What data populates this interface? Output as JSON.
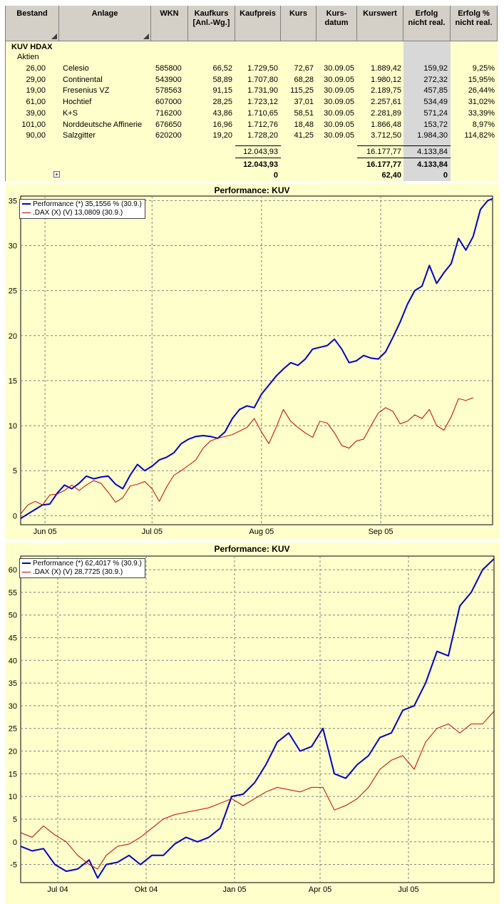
{
  "table": {
    "headers": [
      "Bestand",
      "Anlage",
      "WKN",
      "Kaufkurs [Anl.-Wg.]",
      "Kaufpreis",
      "Kurs",
      "Kurs-datum",
      "Kurswert",
      "Erfolg nicht real.",
      "Erfolg % nicht real."
    ],
    "header_lines": [
      [
        "Bestand"
      ],
      [
        "Anlage"
      ],
      [
        "WKN"
      ],
      [
        "Kaufkurs",
        "[Anl.-Wg.]"
      ],
      [
        "Kaufpreis"
      ],
      [
        "Kurs"
      ],
      [
        "Kurs-",
        "datum"
      ],
      [
        "Kurswert"
      ],
      [
        "Erfolg",
        "nicht real."
      ],
      [
        "Erfolg %",
        "nicht real."
      ]
    ],
    "group": "KUV HDAX",
    "subgroup": "Aktien",
    "rows": [
      {
        "bestand": "26,00",
        "anlage": "Celesio",
        "wkn": "585800",
        "kaufkurs": "66,52",
        "kaufpreis": "1.729,50",
        "kurs": "72,67",
        "datum": "30.09.05",
        "kurswert": "1.889,42",
        "erfolg": "159,92",
        "erfolg_pct": "9,25%"
      },
      {
        "bestand": "29,00",
        "anlage": "Continental",
        "wkn": "543900",
        "kaufkurs": "58,89",
        "kaufpreis": "1.707,80",
        "kurs": "68,28",
        "datum": "30.09.05",
        "kurswert": "1.980,12",
        "erfolg": "272,32",
        "erfolg_pct": "15,95%"
      },
      {
        "bestand": "19,00",
        "anlage": "Fresenius VZ",
        "wkn": "578563",
        "kaufkurs": "91,15",
        "kaufpreis": "1.731,90",
        "kurs": "115,25",
        "datum": "30.09.05",
        "kurswert": "2.189,75",
        "erfolg": "457,85",
        "erfolg_pct": "26,44%"
      },
      {
        "bestand": "61,00",
        "anlage": "Hochtief",
        "wkn": "607000",
        "kaufkurs": "28,25",
        "kaufpreis": "1.723,12",
        "kurs": "37,01",
        "datum": "30.09.05",
        "kurswert": "2.257,61",
        "erfolg": "534,49",
        "erfolg_pct": "31,02%"
      },
      {
        "bestand": "39,00",
        "anlage": "K+S",
        "wkn": "716200",
        "kaufkurs": "43,86",
        "kaufpreis": "1.710,65",
        "kurs": "58,51",
        "datum": "30.09.05",
        "kurswert": "2.281,89",
        "erfolg": "571,24",
        "erfolg_pct": "33,39%"
      },
      {
        "bestand": "101,00",
        "anlage": "Norddeutsche Affinerie",
        "wkn": "676650",
        "kaufkurs": "16,96",
        "kaufpreis": "1.712,76",
        "kurs": "18,48",
        "datum": "30.09.05",
        "kurswert": "1.866,48",
        "erfolg": "153,72",
        "erfolg_pct": "8,97%"
      },
      {
        "bestand": "90,00",
        "anlage": "Salzgitter",
        "wkn": "620200",
        "kaufkurs": "19,20",
        "kaufpreis": "1.728,20",
        "kurs": "41,25",
        "datum": "30.09.05",
        "kurswert": "3.712,50",
        "erfolg": "1.984,30",
        "erfolg_pct": "114,82%"
      }
    ],
    "subtotal": {
      "kaufpreis": "12.043,93",
      "kurswert": "16.177,77",
      "erfolg": "4.133,84"
    },
    "total": {
      "kaufpreis": "12.043,93",
      "kurswert": "16.177,77",
      "erfolg": "4.133,84"
    },
    "total2": {
      "kaufpreis": "0",
      "kurswert": "62,40",
      "erfolg": "0"
    },
    "expand_symbol": "+"
  },
  "chart_data": [
    {
      "type": "line",
      "title": "Performance: KUV",
      "ylim": [
        -1,
        35.5
      ],
      "yticks": [
        0,
        5,
        10,
        15,
        20,
        25,
        30,
        35
      ],
      "xlim": [
        0,
        19.4
      ],
      "xticks": [
        {
          "pos": 1.0,
          "label": "Jun 05"
        },
        {
          "pos": 5.4,
          "label": "Jul 05"
        },
        {
          "pos": 9.9,
          "label": "Aug 05"
        },
        {
          "pos": 14.8,
          "label": "Sep 05"
        }
      ],
      "grid": true,
      "legend_position": "top-left",
      "series": [
        {
          "name": "Performance (*) 35,1556 % (30.9.)",
          "color": "#0000cc",
          "points": [
            [
              0,
              -0.3
            ],
            [
              0.3,
              0.2
            ],
            [
              0.6,
              0.7
            ],
            [
              0.9,
              1.2
            ],
            [
              1.2,
              1.3
            ],
            [
              1.5,
              2.5
            ],
            [
              1.8,
              3.4
            ],
            [
              2.1,
              3.0
            ],
            [
              2.4,
              3.6
            ],
            [
              2.7,
              4.4
            ],
            [
              3.0,
              4.1
            ],
            [
              3.3,
              4.3
            ],
            [
              3.6,
              4.4
            ],
            [
              3.9,
              3.5
            ],
            [
              4.2,
              3.0
            ],
            [
              4.5,
              4.5
            ],
            [
              4.8,
              5.7
            ],
            [
              5.1,
              5.0
            ],
            [
              5.4,
              5.5
            ],
            [
              5.7,
              6.2
            ],
            [
              6.0,
              6.5
            ],
            [
              6.3,
              7.0
            ],
            [
              6.6,
              8.0
            ],
            [
              6.9,
              8.5
            ],
            [
              7.2,
              8.8
            ],
            [
              7.5,
              8.9
            ],
            [
              7.8,
              8.8
            ],
            [
              8.1,
              8.6
            ],
            [
              8.4,
              9.3
            ],
            [
              8.7,
              10.8
            ],
            [
              9.0,
              11.8
            ],
            [
              9.3,
              12.2
            ],
            [
              9.6,
              12.0
            ],
            [
              9.9,
              13.5
            ],
            [
              10.2,
              14.5
            ],
            [
              10.5,
              15.5
            ],
            [
              10.8,
              16.3
            ],
            [
              11.1,
              17.0
            ],
            [
              11.4,
              16.7
            ],
            [
              11.7,
              17.4
            ],
            [
              12.0,
              18.5
            ],
            [
              12.3,
              18.7
            ],
            [
              12.6,
              18.9
            ],
            [
              12.9,
              19.6
            ],
            [
              13.2,
              18.5
            ],
            [
              13.5,
              17.0
            ],
            [
              13.8,
              17.2
            ],
            [
              14.1,
              17.8
            ],
            [
              14.4,
              17.5
            ],
            [
              14.7,
              17.4
            ],
            [
              15.0,
              18.2
            ],
            [
              15.3,
              19.8
            ],
            [
              15.6,
              21.5
            ],
            [
              15.9,
              23.5
            ],
            [
              16.2,
              25.0
            ],
            [
              16.5,
              25.5
            ],
            [
              16.8,
              27.8
            ],
            [
              17.1,
              25.8
            ],
            [
              17.4,
              27.0
            ],
            [
              17.7,
              28.0
            ],
            [
              18.0,
              30.8
            ],
            [
              18.3,
              29.5
            ],
            [
              18.6,
              31.0
            ],
            [
              18.9,
              34.0
            ],
            [
              19.2,
              35.0
            ],
            [
              19.4,
              35.2
            ]
          ]
        },
        {
          "name": ".DAX (X) (V) 13,0809 (30.9.)",
          "color": "#cc0000",
          "points": [
            [
              0,
              0.2
            ],
            [
              0.3,
              1.2
            ],
            [
              0.6,
              1.6
            ],
            [
              0.9,
              1.2
            ],
            [
              1.2,
              2.3
            ],
            [
              1.5,
              2.4
            ],
            [
              1.8,
              2.8
            ],
            [
              2.1,
              3.4
            ],
            [
              2.4,
              2.8
            ],
            [
              2.7,
              3.4
            ],
            [
              3.0,
              3.9
            ],
            [
              3.3,
              3.6
            ],
            [
              3.6,
              2.6
            ],
            [
              3.9,
              1.5
            ],
            [
              4.2,
              2.0
            ],
            [
              4.5,
              3.3
            ],
            [
              4.8,
              3.5
            ],
            [
              5.1,
              3.8
            ],
            [
              5.4,
              3.0
            ],
            [
              5.7,
              1.6
            ],
            [
              6.0,
              3.2
            ],
            [
              6.3,
              4.5
            ],
            [
              6.6,
              5.0
            ],
            [
              6.9,
              5.6
            ],
            [
              7.2,
              6.2
            ],
            [
              7.5,
              7.5
            ],
            [
              7.8,
              8.3
            ],
            [
              8.1,
              8.6
            ],
            [
              8.4,
              8.8
            ],
            [
              8.7,
              9.0
            ],
            [
              9.0,
              9.4
            ],
            [
              9.3,
              9.8
            ],
            [
              9.6,
              10.8
            ],
            [
              9.9,
              9.3
            ],
            [
              10.2,
              8.0
            ],
            [
              10.5,
              9.8
            ],
            [
              10.8,
              11.8
            ],
            [
              11.1,
              10.5
            ],
            [
              11.4,
              9.8
            ],
            [
              11.7,
              9.2
            ],
            [
              12.0,
              8.7
            ],
            [
              12.3,
              10.5
            ],
            [
              12.6,
              10.3
            ],
            [
              12.9,
              9.2
            ],
            [
              13.2,
              7.8
            ],
            [
              13.5,
              7.5
            ],
            [
              13.8,
              8.3
            ],
            [
              14.1,
              8.5
            ],
            [
              14.4,
              10.0
            ],
            [
              14.7,
              11.4
            ],
            [
              15.0,
              12.0
            ],
            [
              15.3,
              11.6
            ],
            [
              15.6,
              10.2
            ],
            [
              15.9,
              10.5
            ],
            [
              16.2,
              11.2
            ],
            [
              16.5,
              10.8
            ],
            [
              16.8,
              11.8
            ],
            [
              17.1,
              10.0
            ],
            [
              17.4,
              9.5
            ],
            [
              17.7,
              11.0
            ],
            [
              18.0,
              13.0
            ],
            [
              18.3,
              12.8
            ],
            [
              18.6,
              13.1
            ]
          ]
        }
      ]
    },
    {
      "type": "line",
      "title": "Performance: KUV",
      "ylim": [
        -9,
        63
      ],
      "yticks": [
        -5,
        0,
        5,
        10,
        15,
        20,
        25,
        30,
        35,
        40,
        45,
        50,
        55,
        60
      ],
      "xlim": [
        0,
        16.6
      ],
      "xticks": [
        {
          "pos": 1.3,
          "label": "Jul 04"
        },
        {
          "pos": 4.4,
          "label": "Okt 04"
        },
        {
          "pos": 7.5,
          "label": "Jan 05"
        },
        {
          "pos": 10.5,
          "label": "Apr 05"
        },
        {
          "pos": 13.6,
          "label": "Jul 05"
        }
      ],
      "grid": true,
      "legend_position": "top-left",
      "series": [
        {
          "name": "Performance (*) 62,4017 % (30.9.)",
          "color": "#0000cc",
          "points": [
            [
              0,
              -1
            ],
            [
              0.4,
              -2
            ],
            [
              0.8,
              -1.5
            ],
            [
              1.2,
              -5
            ],
            [
              1.6,
              -6.5
            ],
            [
              2.0,
              -6
            ],
            [
              2.4,
              -4
            ],
            [
              2.7,
              -8
            ],
            [
              3.0,
              -5
            ],
            [
              3.4,
              -4.5
            ],
            [
              3.8,
              -3
            ],
            [
              4.2,
              -5
            ],
            [
              4.6,
              -3
            ],
            [
              5.0,
              -3
            ],
            [
              5.4,
              -0.5
            ],
            [
              5.8,
              1
            ],
            [
              6.2,
              0
            ],
            [
              6.6,
              1
            ],
            [
              7.0,
              3
            ],
            [
              7.4,
              10
            ],
            [
              7.8,
              10.5
            ],
            [
              8.2,
              13
            ],
            [
              8.6,
              17
            ],
            [
              9.0,
              22
            ],
            [
              9.4,
              24
            ],
            [
              9.8,
              20
            ],
            [
              10.2,
              21
            ],
            [
              10.6,
              25
            ],
            [
              11.0,
              15
            ],
            [
              11.4,
              14
            ],
            [
              11.8,
              17
            ],
            [
              12.2,
              19
            ],
            [
              12.6,
              23
            ],
            [
              13.0,
              24
            ],
            [
              13.4,
              29
            ],
            [
              13.8,
              30
            ],
            [
              14.2,
              35
            ],
            [
              14.6,
              42
            ],
            [
              15.0,
              41
            ],
            [
              15.4,
              52
            ],
            [
              15.8,
              55
            ],
            [
              16.2,
              60
            ],
            [
              16.6,
              62.4
            ]
          ]
        },
        {
          "name": ".DAX (X) (V) 28,7725 (30.9.)",
          "color": "#cc0000",
          "points": [
            [
              0,
              2
            ],
            [
              0.4,
              1
            ],
            [
              0.8,
              3.5
            ],
            [
              1.2,
              1.5
            ],
            [
              1.6,
              0
            ],
            [
              2.0,
              -3
            ],
            [
              2.4,
              -5
            ],
            [
              2.7,
              -6
            ],
            [
              3.0,
              -3
            ],
            [
              3.4,
              -1
            ],
            [
              3.8,
              -0.5
            ],
            [
              4.2,
              1
            ],
            [
              4.6,
              3
            ],
            [
              5.0,
              5
            ],
            [
              5.4,
              6
            ],
            [
              5.8,
              6.5
            ],
            [
              6.2,
              7
            ],
            [
              6.6,
              7.5
            ],
            [
              7.0,
              8.5
            ],
            [
              7.4,
              9.5
            ],
            [
              7.8,
              8
            ],
            [
              8.2,
              9.5
            ],
            [
              8.6,
              11
            ],
            [
              9.0,
              12
            ],
            [
              9.4,
              11.5
            ],
            [
              9.8,
              11
            ],
            [
              10.2,
              12
            ],
            [
              10.6,
              12
            ],
            [
              11.0,
              7
            ],
            [
              11.4,
              8
            ],
            [
              11.8,
              9.5
            ],
            [
              12.2,
              12
            ],
            [
              12.6,
              16
            ],
            [
              13.0,
              18
            ],
            [
              13.4,
              19
            ],
            [
              13.8,
              16
            ],
            [
              14.2,
              22
            ],
            [
              14.6,
              25
            ],
            [
              15.0,
              26
            ],
            [
              15.4,
              24
            ],
            [
              15.8,
              26
            ],
            [
              16.2,
              26
            ],
            [
              16.6,
              28.8
            ]
          ]
        }
      ]
    }
  ]
}
